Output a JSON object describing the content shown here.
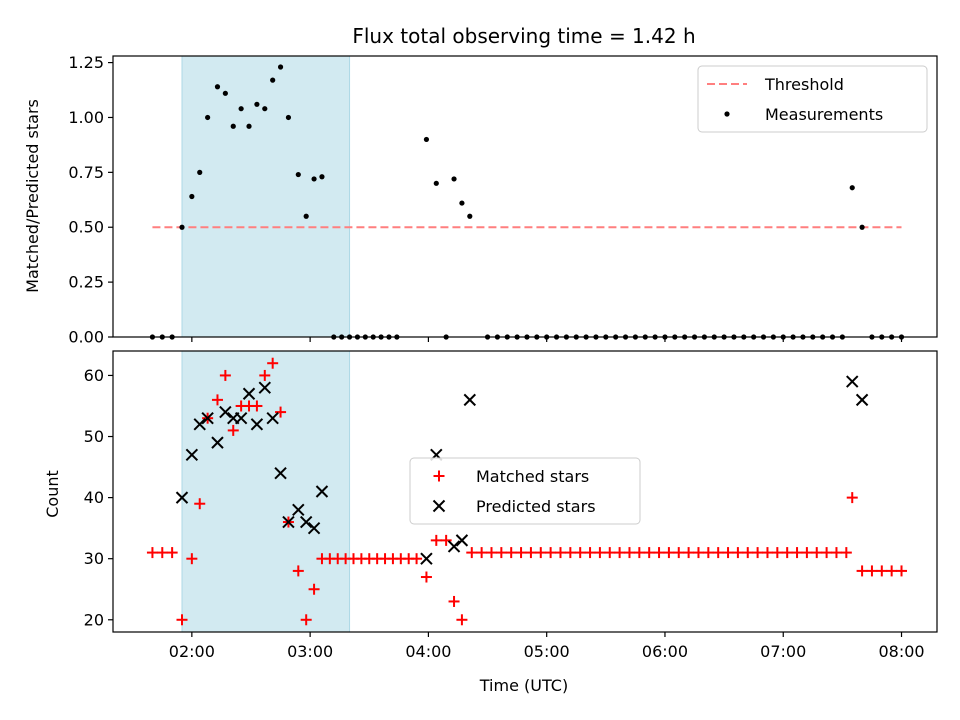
{
  "chart_data": [
    {
      "type": "scatter",
      "title": "Flux total observing time = 1.42 h",
      "xlabel": "",
      "ylabel": "Matched/Predicted stars",
      "xlim": [
        "01:20",
        "08:18"
      ],
      "ylim": [
        0,
        1.28
      ],
      "yticks": [
        "0.00",
        "0.25",
        "0.50",
        "0.75",
        "1.00",
        "1.25"
      ],
      "ytick_values": [
        0,
        0.25,
        0.5,
        0.75,
        1.0,
        1.25
      ],
      "xticks": [
        "02:00",
        "03:00",
        "04:00",
        "05:00",
        "06:00",
        "07:00",
        "08:00"
      ],
      "highlight_span": [
        "01:55",
        "03:20"
      ],
      "highlight_color": "#add8e6",
      "legend": {
        "location": "upper right",
        "entries": [
          "Threshold",
          "Measurements"
        ]
      },
      "series": [
        {
          "name": "Threshold",
          "kind": "dashed-line",
          "color": "#ff7f7f",
          "x": [
            "01:40",
            "08:00"
          ],
          "y": [
            0.5,
            0.5
          ]
        },
        {
          "name": "Measurements",
          "kind": "points",
          "color": "#000000",
          "points": [
            [
              "01:40",
              0
            ],
            [
              "01:45",
              0
            ],
            [
              "01:50",
              0
            ],
            [
              "01:55",
              0.5
            ],
            [
              "02:00",
              0.64
            ],
            [
              "02:04",
              0.75
            ],
            [
              "02:08",
              1.0
            ],
            [
              "02:13",
              1.14
            ],
            [
              "02:17",
              1.11
            ],
            [
              "02:21",
              0.96
            ],
            [
              "02:25",
              1.04
            ],
            [
              "02:29",
              0.96
            ],
            [
              "02:33",
              1.06
            ],
            [
              "02:37",
              1.04
            ],
            [
              "02:41",
              1.17
            ],
            [
              "02:45",
              1.23
            ],
            [
              "02:49",
              1.0
            ],
            [
              "02:54",
              0.74
            ],
            [
              "02:58",
              0.55
            ],
            [
              "03:02",
              0.72
            ],
            [
              "03:06",
              0.73
            ],
            [
              "03:12",
              0
            ],
            [
              "03:16",
              0
            ],
            [
              "03:20",
              0
            ],
            [
              "03:24",
              0
            ],
            [
              "03:28",
              0
            ],
            [
              "03:32",
              0
            ],
            [
              "03:36",
              0
            ],
            [
              "03:40",
              0
            ],
            [
              "03:44",
              0
            ],
            [
              "03:59",
              0.9
            ],
            [
              "04:04",
              0.7
            ],
            [
              "04:09",
              0
            ],
            [
              "04:13",
              0.72
            ],
            [
              "04:17",
              0.61
            ],
            [
              "04:21",
              0.55
            ],
            [
              "04:30",
              0
            ],
            [
              "04:35",
              0
            ],
            [
              "04:40",
              0
            ],
            [
              "04:45",
              0
            ],
            [
              "04:50",
              0
            ],
            [
              "04:55",
              0
            ],
            [
              "05:00",
              0
            ],
            [
              "05:05",
              0
            ],
            [
              "05:10",
              0
            ],
            [
              "05:15",
              0
            ],
            [
              "05:20",
              0
            ],
            [
              "05:25",
              0
            ],
            [
              "05:30",
              0
            ],
            [
              "05:35",
              0
            ],
            [
              "05:40",
              0
            ],
            [
              "05:45",
              0
            ],
            [
              "05:50",
              0
            ],
            [
              "05:55",
              0
            ],
            [
              "06:00",
              0
            ],
            [
              "06:05",
              0
            ],
            [
              "06:10",
              0
            ],
            [
              "06:15",
              0
            ],
            [
              "06:20",
              0
            ],
            [
              "06:25",
              0
            ],
            [
              "06:30",
              0
            ],
            [
              "06:35",
              0
            ],
            [
              "06:40",
              0
            ],
            [
              "06:45",
              0
            ],
            [
              "06:50",
              0
            ],
            [
              "06:55",
              0
            ],
            [
              "07:00",
              0
            ],
            [
              "07:05",
              0
            ],
            [
              "07:10",
              0
            ],
            [
              "07:15",
              0
            ],
            [
              "07:20",
              0
            ],
            [
              "07:25",
              0
            ],
            [
              "07:30",
              0
            ],
            [
              "07:35",
              0.68
            ],
            [
              "07:40",
              0.5
            ],
            [
              "07:45",
              0
            ],
            [
              "07:50",
              0
            ],
            [
              "07:55",
              0
            ],
            [
              "08:00",
              0
            ]
          ]
        }
      ]
    },
    {
      "type": "scatter",
      "title": "",
      "xlabel": "Time (UTC)",
      "ylabel": "Count",
      "xlim": [
        "01:20",
        "08:18"
      ],
      "ylim": [
        18,
        64
      ],
      "yticks": [
        "20",
        "30",
        "40",
        "50",
        "60"
      ],
      "ytick_values": [
        20,
        30,
        40,
        50,
        60
      ],
      "xticks": [
        "02:00",
        "03:00",
        "04:00",
        "05:00",
        "06:00",
        "07:00",
        "08:00"
      ],
      "highlight_span": [
        "01:55",
        "03:20"
      ],
      "highlight_color": "#add8e6",
      "legend": {
        "location": "center",
        "entries": [
          "Matched stars",
          "Predicted stars"
        ]
      },
      "series": [
        {
          "name": "Matched stars",
          "marker": "+",
          "color": "#ff0000",
          "points": [
            [
              "01:40",
              31
            ],
            [
              "01:45",
              31
            ],
            [
              "01:50",
              31
            ],
            [
              "01:55",
              20
            ],
            [
              "02:00",
              30
            ],
            [
              "02:04",
              39
            ],
            [
              "02:08",
              53
            ],
            [
              "02:13",
              56
            ],
            [
              "02:17",
              60
            ],
            [
              "02:21",
              51
            ],
            [
              "02:25",
              55
            ],
            [
              "02:29",
              55
            ],
            [
              "02:33",
              55
            ],
            [
              "02:37",
              60
            ],
            [
              "02:41",
              62
            ],
            [
              "02:45",
              54
            ],
            [
              "02:49",
              36
            ],
            [
              "02:54",
              28
            ],
            [
              "02:58",
              20
            ],
            [
              "03:02",
              25
            ],
            [
              "03:06",
              30
            ],
            [
              "03:10",
              30
            ],
            [
              "03:14",
              30
            ],
            [
              "03:18",
              30
            ],
            [
              "03:22",
              30
            ],
            [
              "03:26",
              30
            ],
            [
              "03:30",
              30
            ],
            [
              "03:34",
              30
            ],
            [
              "03:38",
              30
            ],
            [
              "03:42",
              30
            ],
            [
              "03:46",
              30
            ],
            [
              "03:50",
              30
            ],
            [
              "03:54",
              30
            ],
            [
              "03:59",
              27
            ],
            [
              "04:04",
              33
            ],
            [
              "04:09",
              33
            ],
            [
              "04:13",
              23
            ],
            [
              "04:17",
              20
            ],
            [
              "04:22",
              31
            ],
            [
              "04:27",
              31
            ],
            [
              "04:32",
              31
            ],
            [
              "04:37",
              31
            ],
            [
              "04:42",
              31
            ],
            [
              "04:47",
              31
            ],
            [
              "04:52",
              31
            ],
            [
              "04:57",
              31
            ],
            [
              "05:02",
              31
            ],
            [
              "05:07",
              31
            ],
            [
              "05:12",
              31
            ],
            [
              "05:17",
              31
            ],
            [
              "05:22",
              31
            ],
            [
              "05:27",
              31
            ],
            [
              "05:32",
              31
            ],
            [
              "05:37",
              31
            ],
            [
              "05:42",
              31
            ],
            [
              "05:47",
              31
            ],
            [
              "05:52",
              31
            ],
            [
              "05:57",
              31
            ],
            [
              "06:02",
              31
            ],
            [
              "06:07",
              31
            ],
            [
              "06:12",
              31
            ],
            [
              "06:17",
              31
            ],
            [
              "06:22",
              31
            ],
            [
              "06:27",
              31
            ],
            [
              "06:32",
              31
            ],
            [
              "06:37",
              31
            ],
            [
              "06:42",
              31
            ],
            [
              "06:47",
              31
            ],
            [
              "06:52",
              31
            ],
            [
              "06:57",
              31
            ],
            [
              "07:02",
              31
            ],
            [
              "07:07",
              31
            ],
            [
              "07:12",
              31
            ],
            [
              "07:17",
              31
            ],
            [
              "07:22",
              31
            ],
            [
              "07:27",
              31
            ],
            [
              "07:32",
              31
            ],
            [
              "07:35",
              40
            ],
            [
              "07:40",
              28
            ],
            [
              "07:45",
              28
            ],
            [
              "07:50",
              28
            ],
            [
              "07:55",
              28
            ],
            [
              "08:00",
              28
            ]
          ]
        },
        {
          "name": "Predicted stars",
          "marker": "x",
          "color": "#000000",
          "points": [
            [
              "01:55",
              40
            ],
            [
              "02:00",
              47
            ],
            [
              "02:04",
              52
            ],
            [
              "02:08",
              53
            ],
            [
              "02:13",
              49
            ],
            [
              "02:17",
              54
            ],
            [
              "02:21",
              53
            ],
            [
              "02:25",
              53
            ],
            [
              "02:29",
              57
            ],
            [
              "02:33",
              52
            ],
            [
              "02:37",
              58
            ],
            [
              "02:41",
              53
            ],
            [
              "02:45",
              44
            ],
            [
              "02:49",
              36
            ],
            [
              "02:54",
              38
            ],
            [
              "02:58",
              36
            ],
            [
              "03:02",
              35
            ],
            [
              "03:06",
              41
            ],
            [
              "03:59",
              30
            ],
            [
              "04:04",
              47
            ],
            [
              "04:13",
              32
            ],
            [
              "04:17",
              33
            ],
            [
              "04:21",
              56
            ],
            [
              "07:35",
              59
            ],
            [
              "07:40",
              56
            ]
          ]
        }
      ]
    }
  ]
}
